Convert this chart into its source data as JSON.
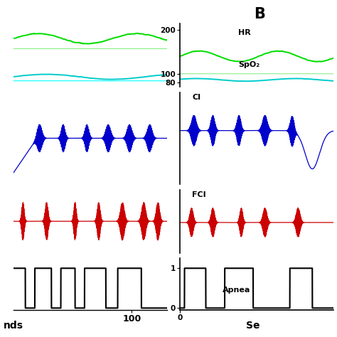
{
  "hr_color": "#00dd00",
  "hr_flat_color": "#88ee88",
  "spo2_color": "#00cccc",
  "spo2_flat_color": "#00ffff",
  "ci_color": "#0000cc",
  "fci_color": "#cc0000",
  "apnea_color": "#000000",
  "bg_color": "#ffffff",
  "title_B": "B",
  "label_HR": "HR",
  "label_SpO2": "SpO₂",
  "label_CI": "CI",
  "label_FCI": "FCI",
  "label_Apnea": "Apnea",
  "xlabel_A": "nds",
  "xlabel_B": "Se",
  "yticks_B_top": [
    80,
    100,
    200
  ],
  "yticks_B_bot": [
    0,
    1
  ],
  "xtick_A": 100,
  "xtick_B": 0
}
